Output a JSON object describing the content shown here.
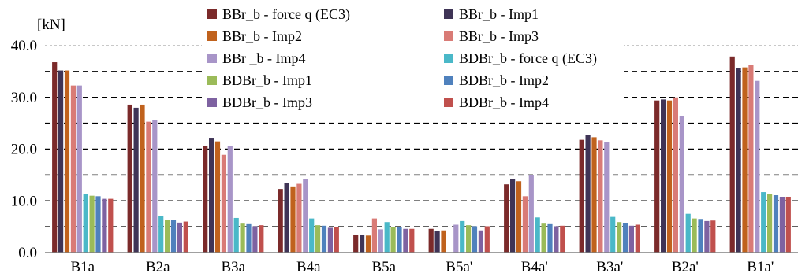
{
  "chart_data": {
    "type": "bar",
    "ylabel": "[kN]",
    "ylim": [
      0,
      40
    ],
    "yticks": [
      "0.0",
      "10.0",
      "20.0",
      "30.0",
      "40.0"
    ],
    "grid": "dashed horizontal lines every 5 kN (40.0 line dotted)",
    "legend_position": "top-center",
    "categories": [
      "B1a",
      "B2a",
      "B3a",
      "B4a",
      "B5a",
      "B5a'",
      "B4a'",
      "B3a'",
      "B2a'",
      "B1a'"
    ],
    "series": [
      {
        "name": "BBr_b - force q (EC3)",
        "color": "#7b2a2a",
        "values": [
          36.8,
          28.6,
          20.6,
          12.3,
          3.5,
          4.6,
          13.2,
          21.8,
          29.4,
          37.9
        ]
      },
      {
        "name": "BBr_b - Imp1",
        "color": "#3f3456",
        "values": [
          35.2,
          28.0,
          22.2,
          13.4,
          3.5,
          4.2,
          14.2,
          22.7,
          29.6,
          35.6
        ]
      },
      {
        "name": "BBr_b - Imp2",
        "color": "#c0621d",
        "values": [
          35.2,
          28.6,
          21.5,
          12.8,
          3.3,
          4.3,
          13.8,
          22.3,
          29.4,
          35.8
        ]
      },
      {
        "name": "BBr_b - Imp3",
        "color": "#d97b76",
        "values": [
          32.3,
          25.3,
          18.9,
          13.3,
          6.6,
          0.0,
          10.9,
          21.7,
          30.0,
          36.2
        ]
      },
      {
        "name": "BBr _b - Imp4",
        "color": "#a895c8",
        "values": [
          32.3,
          25.6,
          20.6,
          14.2,
          4.5,
          5.4,
          15.0,
          21.4,
          26.4,
          33.2
        ]
      },
      {
        "name": "BDBr_b - force q (EC3)",
        "color": "#4ab8c8",
        "values": [
          11.4,
          7.1,
          6.7,
          6.6,
          5.9,
          6.1,
          6.8,
          6.9,
          7.5,
          11.7
        ]
      },
      {
        "name": "BDBr_b - Imp1",
        "color": "#9bbb59",
        "values": [
          11.0,
          6.3,
          5.6,
          5.3,
          4.9,
          5.3,
          5.6,
          5.9,
          6.6,
          11.3
        ]
      },
      {
        "name": "BDBr_b - Imp2",
        "color": "#4f81bd",
        "values": [
          10.9,
          6.3,
          5.5,
          5.2,
          4.9,
          5.1,
          5.5,
          5.7,
          6.5,
          11.1
        ]
      },
      {
        "name": "BDBr_b - Imp3",
        "color": "#7e62a1",
        "values": [
          10.4,
          5.8,
          5.1,
          4.8,
          4.6,
          4.3,
          5.1,
          5.2,
          6.1,
          10.8
        ]
      },
      {
        "name": "BDBr_b - Imp4",
        "color": "#c0504d",
        "values": [
          10.4,
          6.0,
          5.3,
          4.9,
          4.6,
          5.1,
          5.2,
          5.4,
          6.2,
          10.8
        ]
      }
    ]
  }
}
